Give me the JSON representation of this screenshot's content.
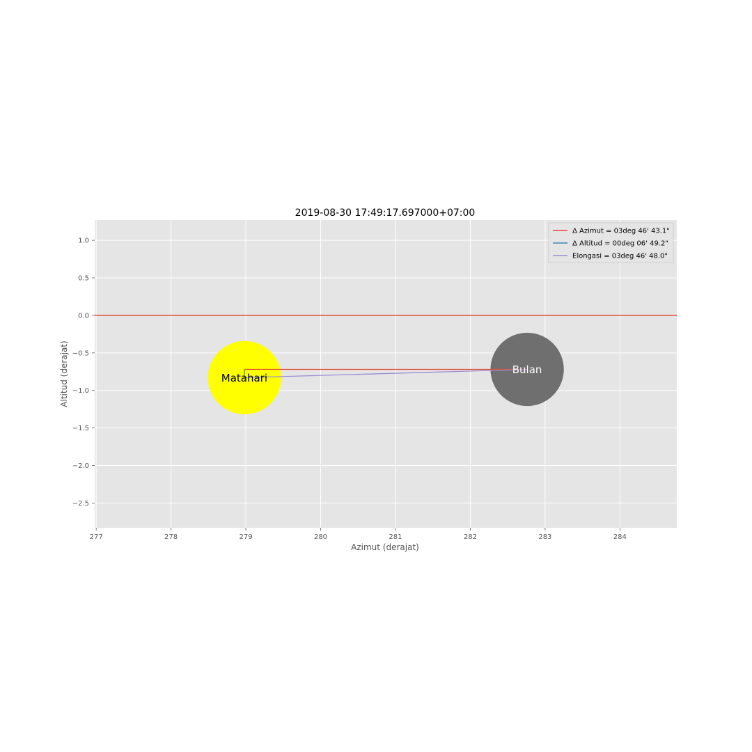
{
  "chart_data": {
    "type": "scatter",
    "title": "2019-08-30 17:49:17.697000+07:00",
    "xlabel": "Azimut (derajat)",
    "ylabel": "Altitud (derajat)",
    "xlim": [
      276.98,
      284.76
    ],
    "ylim": [
      -2.83,
      1.27
    ],
    "xticks": [
      277,
      278,
      279,
      280,
      281,
      282,
      283,
      284
    ],
    "yticks": [
      1.0,
      0.5,
      0.0,
      -0.5,
      -1.0,
      -1.5,
      -2.0,
      -2.5
    ],
    "xtick_labels": [
      "277",
      "278",
      "279",
      "280",
      "281",
      "282",
      "283",
      "284"
    ],
    "ytick_labels": [
      "1.0",
      "0.5",
      "0.0",
      "−0.5",
      "−1.0",
      "−1.5",
      "−2.0",
      "−2.5"
    ],
    "grid": true,
    "legend_position": "upper right",
    "horizon": {
      "y": 0.0,
      "color": "#e24a33"
    },
    "bodies": [
      {
        "label": "Matahari",
        "x": 278.98,
        "y": -0.83,
        "radius": 0.49,
        "color": "#ffff00",
        "text_color": "#000000"
      },
      {
        "label": "Bulan",
        "x": 282.76,
        "y": -0.72,
        "radius": 0.49,
        "color": "#6f6f6f",
        "text_color": "#ffffff"
      }
    ],
    "series": [
      {
        "name": "Δ Azimut = 03deg 46' 43.1\"",
        "color": "#e24a33",
        "x": [
          278.98,
          282.76
        ],
        "y": [
          -0.72,
          -0.72
        ]
      },
      {
        "name": "Δ Altitud = 00deg 06' 49.2\"",
        "color": "#348abd",
        "x": [
          278.98,
          278.98
        ],
        "y": [
          -0.83,
          -0.72
        ]
      },
      {
        "name": "Elongasi = 03deg 46' 48.0\"",
        "color": "#988ed5",
        "x": [
          278.98,
          282.76
        ],
        "y": [
          -0.83,
          -0.72
        ]
      }
    ]
  }
}
